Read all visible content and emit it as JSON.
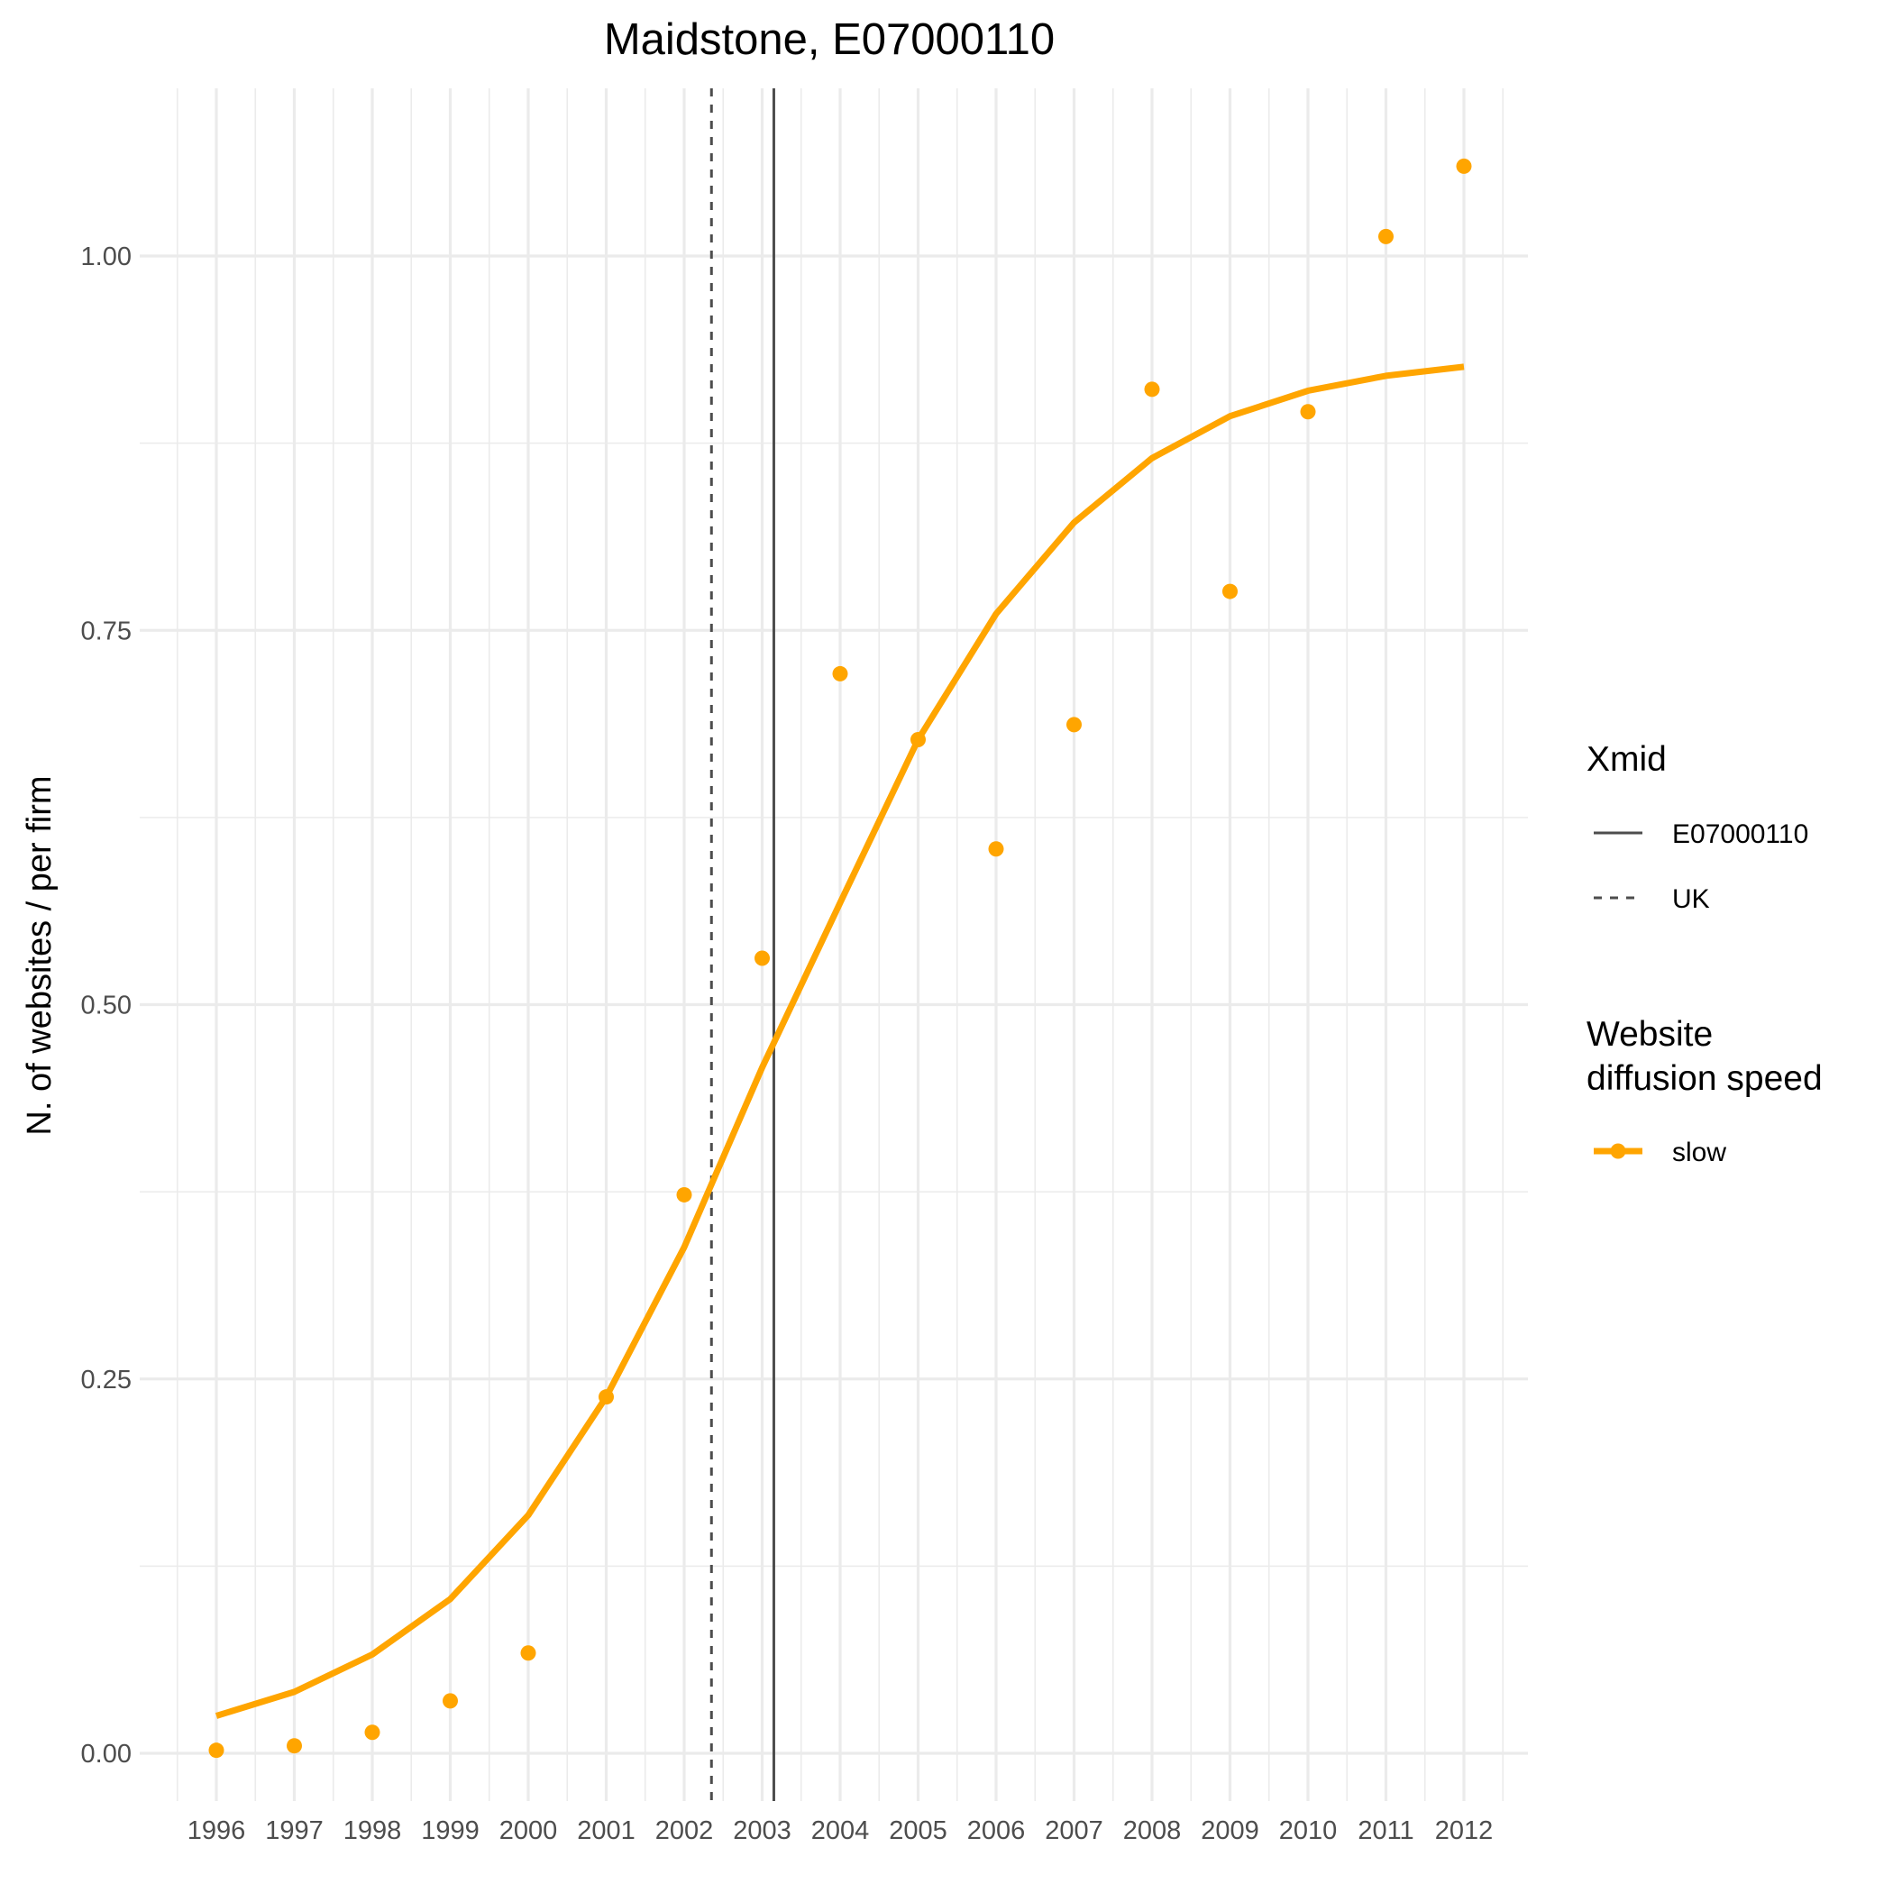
{
  "chart_data": {
    "type": "line",
    "title": "Maidstone, E07000110",
    "xlabel": "",
    "ylabel": "N. of websites / per firm",
    "x": [
      1996,
      1997,
      1998,
      1999,
      2000,
      2001,
      2002,
      2003,
      2004,
      2005,
      2006,
      2007,
      2008,
      2009,
      2010,
      2011,
      2012
    ],
    "x_tick_labels": [
      "1996",
      "1997",
      "1998",
      "1999",
      "2000",
      "2001",
      "2002",
      "2003",
      "2004",
      "2005",
      "2006",
      "2007",
      "2008",
      "2009",
      "2010",
      "2011",
      "2012"
    ],
    "xlim": [
      1995.5,
      2012.5
    ],
    "ylim": [
      -0.035,
      1.105
    ],
    "y_ticks": [
      0,
      0.25,
      0.5,
      0.75,
      1
    ],
    "y_tick_labels": [
      "0.00",
      "0.25",
      "0.50",
      "0.75",
      "1.00"
    ],
    "grid": true,
    "legend_position": "right",
    "series": [
      {
        "name": "slow",
        "color": "#FFA500",
        "fitted": [
          0.025,
          0.041,
          0.066,
          0.103,
          0.159,
          0.238,
          0.338,
          0.458,
          0.568,
          0.677,
          0.761,
          0.822,
          0.865,
          0.893,
          0.91,
          0.92,
          0.926
        ],
        "observed": [
          0.002,
          0.005,
          0.014,
          0.035,
          0.067,
          0.238,
          0.373,
          0.531,
          0.721,
          0.677,
          0.604,
          0.687,
          0.911,
          0.776,
          0.896,
          1.013,
          1.06
        ]
      }
    ],
    "vlines": [
      {
        "name": "E07000110",
        "x": 2003.15,
        "linetype": "solid",
        "color": "#4d4d4d"
      },
      {
        "name": "UK",
        "x": 2002.35,
        "linetype": "dashed",
        "color": "#4d4d4d"
      }
    ],
    "legends": [
      {
        "title": "Xmid",
        "items": [
          {
            "label": "E07000110",
            "linetype": "solid"
          },
          {
            "label": "UK",
            "linetype": "dashed"
          }
        ]
      },
      {
        "title": "Website\ndiffusion speed",
        "items": [
          {
            "label": "slow",
            "color": "#FFA500"
          }
        ]
      }
    ]
  }
}
